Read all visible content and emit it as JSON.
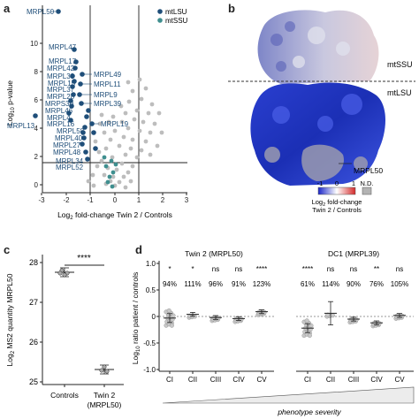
{
  "panels": {
    "a": {
      "letter": "a",
      "legend": [
        {
          "label": "mtLSU",
          "color": "#1f4e79"
        },
        {
          "label": "mtSSU",
          "color": "#3f8f8f"
        }
      ],
      "y_tick_labels": [
        "0",
        "2",
        "4",
        "6",
        "8",
        "10"
      ],
      "x_tick_labels": [
        "-3",
        "-2",
        "-1",
        "0",
        "1",
        "2",
        "3"
      ],
      "point_labels": [
        "MRPL50",
        "MRPL47",
        "MRPL17",
        "MRPL42",
        "MRPL38",
        "MRPL15",
        "MRPL37",
        "MRPL28",
        "MRPS30",
        "MRPL46",
        "MRPL4",
        "MRPL16",
        "MRPL13",
        "MRPL58",
        "MRPL40",
        "MRPL27",
        "MRPL48",
        "MRPL34",
        "MRPL52",
        "MRPL49",
        "MRPL11",
        "MRPL9",
        "MRPL39",
        "MRPL19"
      ]
    },
    "b": {
      "letter": "b",
      "labels": {
        "ssu": "mtSSU",
        "lsu": "mtLSU",
        "pointer": "MRPL50"
      },
      "scale": {
        "ticks": [
          "-1",
          "0",
          "1"
        ],
        "nd": "N.D.",
        "title_line2": "Twin 2 / Controls"
      }
    },
    "c": {
      "letter": "c",
      "significance": "****",
      "y_tick_labels": [
        "25",
        "26",
        "27",
        "28"
      ],
      "categories": [
        "Controls",
        "Twin 2",
        "(MRPL50)"
      ]
    },
    "d": {
      "letter": "d",
      "y_tick_labels": [
        "-1.0",
        "-0.5",
        "0",
        "0.5",
        "1.0"
      ],
      "subplots": [
        {
          "title": "Twin 2 (MRPL50)",
          "categories": [
            "CI",
            "CII",
            "CIII",
            "CIV",
            "CV"
          ],
          "stars": [
            "*",
            "*",
            "ns",
            "ns",
            "****"
          ],
          "percents": [
            "94%",
            "111%",
            "96%",
            "91%",
            "123%"
          ],
          "means": [
            -0.03,
            0.04,
            -0.02,
            -0.04,
            0.09
          ]
        },
        {
          "title": "DC1 (MRPL39)",
          "categories": [
            "CI",
            "CII",
            "CIII",
            "CIV",
            "CV"
          ],
          "stars": [
            "****",
            "ns",
            "ns",
            "**",
            "ns"
          ],
          "percents": [
            "61%",
            "114%",
            "90%",
            "76%",
            "105%"
          ],
          "means": [
            -0.22,
            0.06,
            -0.05,
            -0.12,
            0.02
          ]
        }
      ],
      "footer": "phenotype severity"
    }
  }
}
